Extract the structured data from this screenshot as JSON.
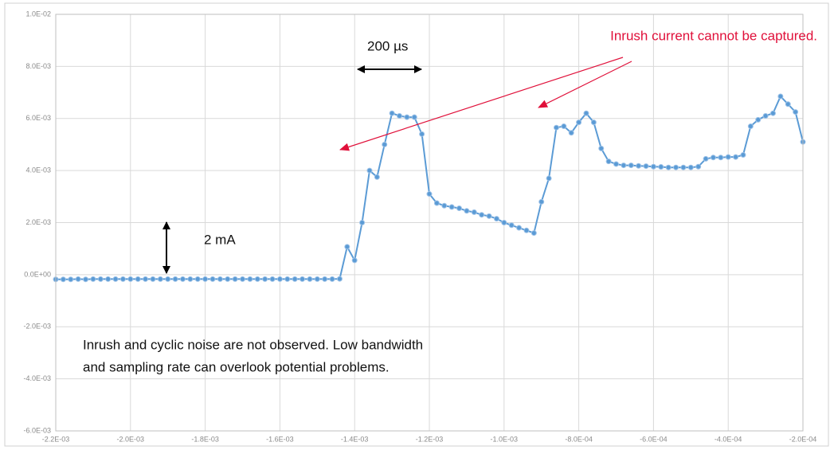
{
  "chart_data": {
    "type": "line",
    "x": [
      -0.0022,
      -0.00218,
      -0.00216,
      -0.00214,
      -0.00212,
      -0.0021,
      -0.00208,
      -0.00206,
      -0.00204,
      -0.00202,
      -0.002,
      -0.00198,
      -0.00196,
      -0.00194,
      -0.00192,
      -0.0019,
      -0.00188,
      -0.00186,
      -0.00184,
      -0.00182,
      -0.0018,
      -0.00178,
      -0.00176,
      -0.00174,
      -0.00172,
      -0.0017,
      -0.00168,
      -0.00166,
      -0.00164,
      -0.00162,
      -0.0016,
      -0.00158,
      -0.00156,
      -0.00154,
      -0.00152,
      -0.0015,
      -0.00148,
      -0.00146,
      -0.00144,
      -0.00142,
      -0.0014,
      -0.00138,
      -0.00136,
      -0.00134,
      -0.00132,
      -0.0013,
      -0.00128,
      -0.00126,
      -0.00124,
      -0.00122,
      -0.0012,
      -0.00118,
      -0.00116,
      -0.00114,
      -0.00112,
      -0.0011,
      -0.00108,
      -0.00106,
      -0.00104,
      -0.00102,
      -0.001,
      -0.00098,
      -0.00096,
      -0.00094,
      -0.00092,
      -0.0009,
      -0.00088,
      -0.00086,
      -0.00084,
      -0.00082,
      -0.0008,
      -0.00078,
      -0.00076,
      -0.00074,
      -0.00072,
      -0.0007,
      -0.00068,
      -0.00066,
      -0.00064,
      -0.00062,
      -0.0006,
      -0.00058,
      -0.00056,
      -0.00054,
      -0.00052,
      -0.0005,
      -0.00048,
      -0.00046,
      -0.00044,
      -0.00042,
      -0.0004,
      -0.00038,
      -0.00036,
      -0.00034,
      -0.00032,
      -0.0003,
      -0.00028,
      -0.00026,
      -0.00024,
      -0.00022,
      -0.0002
    ],
    "series": [
      {
        "color": "#5b9bd5",
        "values": [
          -0.00018,
          -0.00018,
          -0.00018,
          -0.00017,
          -0.00018,
          -0.00017,
          -0.00017,
          -0.00017,
          -0.00017,
          -0.00017,
          -0.00017,
          -0.00017,
          -0.00017,
          -0.00017,
          -0.00017,
          -0.00017,
          -0.00017,
          -0.00017,
          -0.00017,
          -0.00017,
          -0.00017,
          -0.00017,
          -0.00017,
          -0.00017,
          -0.00017,
          -0.00017,
          -0.00017,
          -0.00017,
          -0.00017,
          -0.00017,
          -0.00017,
          -0.00017,
          -0.00017,
          -0.00017,
          -0.00017,
          -0.00017,
          -0.00017,
          -0.00017,
          -0.00016,
          0.00107,
          0.00055,
          0.002,
          0.004,
          0.00375,
          0.005,
          0.0062,
          0.0061,
          0.00605,
          0.00605,
          0.0054,
          0.0031,
          0.00275,
          0.00265,
          0.0026,
          0.00255,
          0.00245,
          0.0024,
          0.0023,
          0.00225,
          0.00215,
          0.002,
          0.0019,
          0.0018,
          0.0017,
          0.0016,
          0.0028,
          0.0037,
          0.00565,
          0.0057,
          0.00545,
          0.00585,
          0.0062,
          0.00585,
          0.00485,
          0.00435,
          0.00425,
          0.0042,
          0.0042,
          0.00418,
          0.00417,
          0.00415,
          0.00414,
          0.00412,
          0.00412,
          0.00412,
          0.00412,
          0.00415,
          0.00445,
          0.0045,
          0.0045,
          0.00452,
          0.00452,
          0.0046,
          0.0057,
          0.00595,
          0.0061,
          0.0062,
          0.00685,
          0.00655,
          0.00625,
          0.0051
        ]
      }
    ],
    "xlim": [
      -0.0022,
      -0.0002
    ],
    "xticks": [
      {
        "value": -0.0022,
        "label": "-2.2E-03"
      },
      {
        "value": -0.002,
        "label": "-2.0E-03"
      },
      {
        "value": -0.0018,
        "label": "-1.8E-03"
      },
      {
        "value": -0.0016,
        "label": "-1.6E-03"
      },
      {
        "value": -0.0014,
        "label": "-1.4E-03"
      },
      {
        "value": -0.0012,
        "label": "-1.2E-03"
      },
      {
        "value": -0.001,
        "label": "-1.0E-03"
      },
      {
        "value": -0.0008,
        "label": "-8.0E-04"
      },
      {
        "value": -0.0006,
        "label": "-6.0E-04"
      },
      {
        "value": -0.0004,
        "label": "-4.0E-04"
      },
      {
        "value": -0.0002,
        "label": "-2.0E-04"
      }
    ],
    "ylim": [
      -0.006,
      0.01
    ],
    "yticks": [
      {
        "value": -0.006,
        "label": "-6.0E-03"
      },
      {
        "value": -0.004,
        "label": "-4.0E-03"
      },
      {
        "value": -0.002,
        "label": "-2.0E-03"
      },
      {
        "value": 0,
        "label": "0.0E+00"
      },
      {
        "value": 0.002,
        "label": "2.0E-03"
      },
      {
        "value": 0.004,
        "label": "4.0E-03"
      },
      {
        "value": 0.006,
        "label": "6.0E-03"
      },
      {
        "value": 0.008,
        "label": "8.0E-03"
      },
      {
        "value": 0.01,
        "label": "1.0E-02"
      }
    ],
    "grid": true,
    "annotations": [
      "200 µs",
      "2 mA",
      "Inrush current cannot be captured."
    ],
    "note": [
      "Inrush and cyclic noise are not observed. Low bandwidth",
      "and sampling rate can overlook potential problems."
    ]
  }
}
